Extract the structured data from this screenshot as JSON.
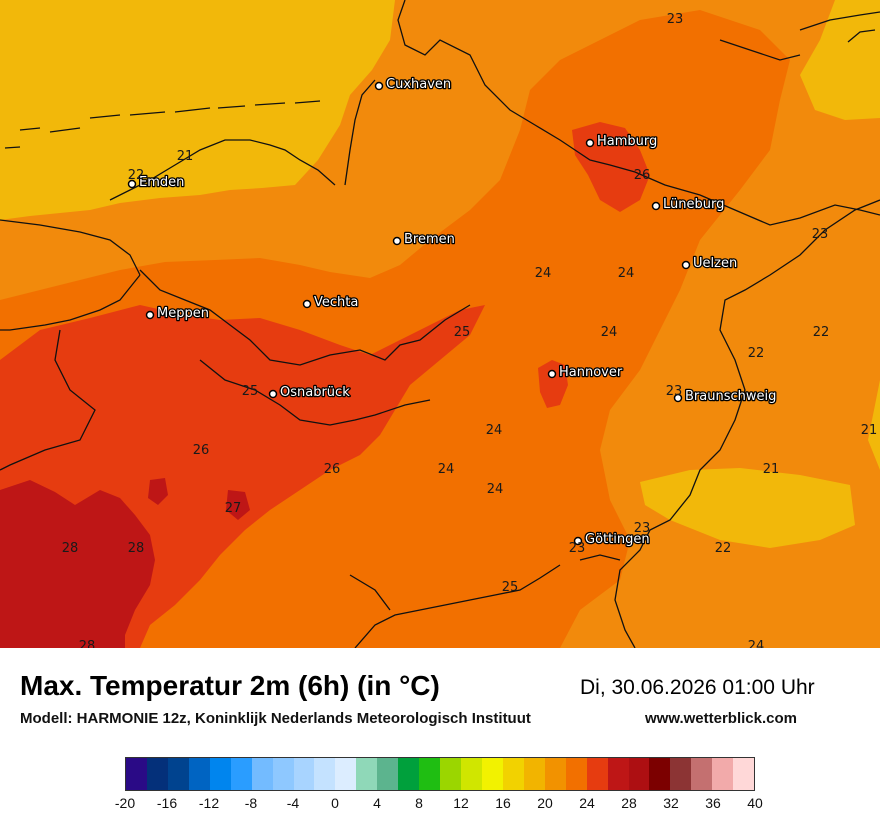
{
  "map": {
    "cities": [
      {
        "name": "Cuxhaven"
      },
      {
        "name": "Hamburg"
      },
      {
        "name": "Emden"
      },
      {
        "name": "Lüneburg"
      },
      {
        "name": "Bremen"
      },
      {
        "name": "Uelzen"
      },
      {
        "name": "Vechta"
      },
      {
        "name": "Meppen"
      },
      {
        "name": "Hannover"
      },
      {
        "name": "Osnabrück"
      },
      {
        "name": "Braunschweig"
      },
      {
        "name": "Göttingen"
      }
    ],
    "values": [
      {
        "value": "23"
      },
      {
        "value": "21"
      },
      {
        "value": "22"
      },
      {
        "value": "26"
      },
      {
        "value": "23"
      },
      {
        "value": "24"
      },
      {
        "value": "24"
      },
      {
        "value": "25"
      },
      {
        "value": "24"
      },
      {
        "value": "22"
      },
      {
        "value": "22"
      },
      {
        "value": "25"
      },
      {
        "value": "23"
      },
      {
        "value": "21"
      },
      {
        "value": "26"
      },
      {
        "value": "24"
      },
      {
        "value": "26"
      },
      {
        "value": "24"
      },
      {
        "value": "24"
      },
      {
        "value": "21"
      },
      {
        "value": "27"
      },
      {
        "value": "23"
      },
      {
        "value": "28"
      },
      {
        "value": "28"
      },
      {
        "value": "23"
      },
      {
        "value": "22"
      },
      {
        "value": "25"
      },
      {
        "value": "28"
      },
      {
        "value": "24"
      }
    ]
  },
  "footer": {
    "title": "Max. Temperatur 2m (6h) (in °C)",
    "model": "Modell: HARMONIE 12z, Koninklijk Nederlands Meteorologisch Instituut",
    "datetime": "Di, 30.06.2026 01:00 Uhr",
    "website": "www.wetterblick.com"
  },
  "legend": {
    "colors": [
      "#2a0a86",
      "#04307a",
      "#00438f",
      "#0064c2",
      "#0085ee",
      "#2a9dff",
      "#73bbff",
      "#8ec8ff",
      "#a8d4ff",
      "#c4e2ff",
      "#dcedff",
      "#8fd8b8",
      "#5cb48e",
      "#00a03c",
      "#1fbe12",
      "#9bd600",
      "#d0e600",
      "#f2f200",
      "#f2d200",
      "#f2b400",
      "#f29200",
      "#f27000",
      "#e63c10",
      "#be1616",
      "#ad0f12",
      "#7c0000",
      "#8c3434",
      "#c47070",
      "#f2aaaa",
      "#ffd8d8"
    ],
    "ticks": [
      "-20",
      "-16",
      "-12",
      "-8",
      "-4",
      "0",
      "4",
      "8",
      "12",
      "16",
      "20",
      "24",
      "28",
      "32",
      "36",
      "40"
    ]
  }
}
